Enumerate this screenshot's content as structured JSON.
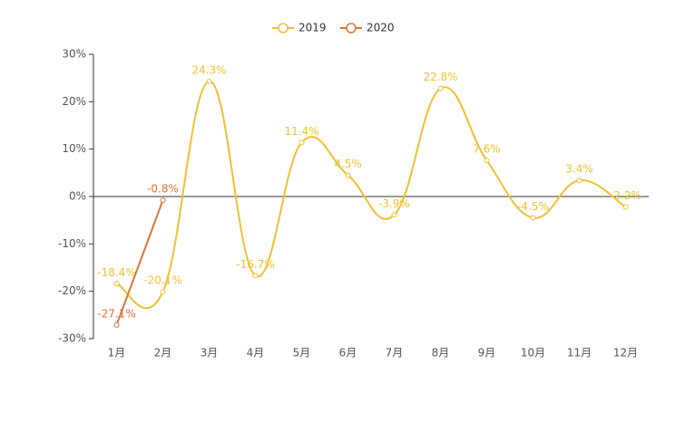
{
  "chart_data": {
    "type": "line",
    "categories": [
      "1月",
      "2月",
      "3月",
      "4月",
      "5月",
      "6月",
      "7月",
      "8月",
      "9月",
      "10月",
      "11月",
      "12月"
    ],
    "series": [
      {
        "name": "2019",
        "color": "#f0c030",
        "smooth": true,
        "values": [
          -18.4,
          -20.1,
          24.3,
          -16.7,
          11.4,
          4.5,
          -3.9,
          22.8,
          7.6,
          -4.5,
          3.4,
          -2.2
        ],
        "value_labels": [
          "-18.4%",
          "-20.1%",
          "24.3%",
          "-16.7%",
          "11.4%",
          "4.5%",
          "-3.9%",
          "22.8%",
          "7.6%",
          "-4.5%",
          "3.4%",
          "-2.2%"
        ]
      },
      {
        "name": "2020",
        "color": "#dd7335",
        "smooth": false,
        "values": [
          -27.1,
          -0.8,
          null,
          null,
          null,
          null,
          null,
          null,
          null,
          null,
          null,
          null
        ],
        "value_labels": [
          "-27.1%",
          "-0.8%",
          null,
          null,
          null,
          null,
          null,
          null,
          null,
          null,
          null,
          null
        ]
      }
    ],
    "ylim": [
      -30,
      30
    ],
    "yticks": [
      {
        "value": -30,
        "label": "-30%"
      },
      {
        "value": -20,
        "label": "-20%"
      },
      {
        "value": -10,
        "label": "-10%"
      },
      {
        "value": 0,
        "label": "0%"
      },
      {
        "value": 10,
        "label": "10%"
      },
      {
        "value": 20,
        "label": "20%"
      },
      {
        "value": 30,
        "label": "30%"
      }
    ],
    "legend": "top"
  }
}
